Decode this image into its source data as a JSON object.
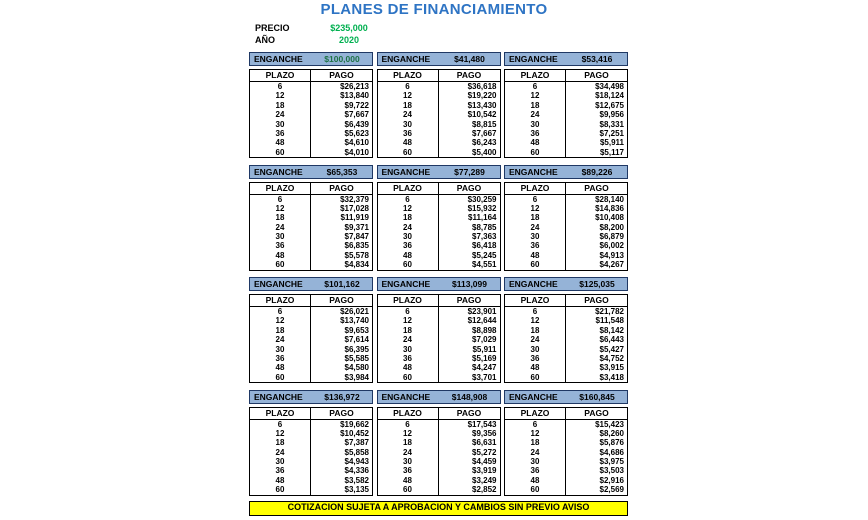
{
  "title": "PLANES DE FINANCIAMIENTO",
  "info": {
    "precio_label": "PRECIO",
    "precio_value": "$235,000",
    "anio_label": "AÑO",
    "anio_value": "2020"
  },
  "labels": {
    "enganche": "ENGANCHE",
    "plazo": "PLAZO",
    "pago": "PAGO"
  },
  "plazos": [
    6,
    12,
    18,
    24,
    30,
    36,
    48,
    60
  ],
  "plans": [
    {
      "enganche": "$100,000",
      "highlight": true,
      "pagos": [
        "$26,213",
        "$13,840",
        "$9,722",
        "$7,667",
        "$6,439",
        "$5,623",
        "$4,610",
        "$4,010"
      ]
    },
    {
      "enganche": "$41,480",
      "highlight": false,
      "pagos": [
        "$36,618",
        "$19,220",
        "$13,430",
        "$10,542",
        "$8,815",
        "$7,667",
        "$6,243",
        "$5,400"
      ]
    },
    {
      "enganche": "$53,416",
      "highlight": false,
      "pagos": [
        "$34,498",
        "$18,124",
        "$12,675",
        "$9,956",
        "$8,331",
        "$7,251",
        "$5,911",
        "$5,117"
      ]
    },
    {
      "enganche": "$65,353",
      "highlight": false,
      "pagos": [
        "$32,379",
        "$17,028",
        "$11,919",
        "$9,371",
        "$7,847",
        "$6,835",
        "$5,578",
        "$4,834"
      ]
    },
    {
      "enganche": "$77,289",
      "highlight": false,
      "pagos": [
        "$30,259",
        "$15,932",
        "$11,164",
        "$8,785",
        "$7,363",
        "$6,418",
        "$5,245",
        "$4,551"
      ]
    },
    {
      "enganche": "$89,226",
      "highlight": false,
      "pagos": [
        "$28,140",
        "$14,836",
        "$10,408",
        "$8,200",
        "$6,879",
        "$6,002",
        "$4,913",
        "$4,267"
      ]
    },
    {
      "enganche": "$101,162",
      "highlight": false,
      "pagos": [
        "$26,021",
        "$13,740",
        "$9,653",
        "$7,614",
        "$6,395",
        "$5,585",
        "$4,580",
        "$3,984"
      ]
    },
    {
      "enganche": "$113,099",
      "highlight": false,
      "pagos": [
        "$23,901",
        "$12,644",
        "$8,898",
        "$7,029",
        "$5,911",
        "$5,169",
        "$4,247",
        "$3,701"
      ]
    },
    {
      "enganche": "$125,035",
      "highlight": false,
      "pagos": [
        "$21,782",
        "$11,548",
        "$8,142",
        "$6,443",
        "$5,427",
        "$4,752",
        "$3,915",
        "$3,418"
      ]
    },
    {
      "enganche": "$136,972",
      "highlight": false,
      "pagos": [
        "$19,662",
        "$10,452",
        "$7,387",
        "$5,858",
        "$4,943",
        "$4,336",
        "$3,582",
        "$3,135"
      ]
    },
    {
      "enganche": "$148,908",
      "highlight": false,
      "pagos": [
        "$17,543",
        "$9,356",
        "$6,631",
        "$5,272",
        "$4,459",
        "$3,919",
        "$3,249",
        "$2,852"
      ]
    },
    {
      "enganche": "$160,845",
      "highlight": false,
      "pagos": [
        "$15,423",
        "$8,260",
        "$5,876",
        "$4,686",
        "$3,975",
        "$3,503",
        "$2,916",
        "$2,569"
      ]
    }
  ],
  "footer": "COTIZACION SUJETA A APROBACION Y CAMBIOS SIN PREVIO AVISO",
  "colors": {
    "title_blue": "#2e74c4",
    "value_green": "#00b050",
    "enganche_green": "#1e7245",
    "header_fill": "#95b3d7",
    "header_border": "#1f3864",
    "footer_yellow": "#ffff00"
  }
}
